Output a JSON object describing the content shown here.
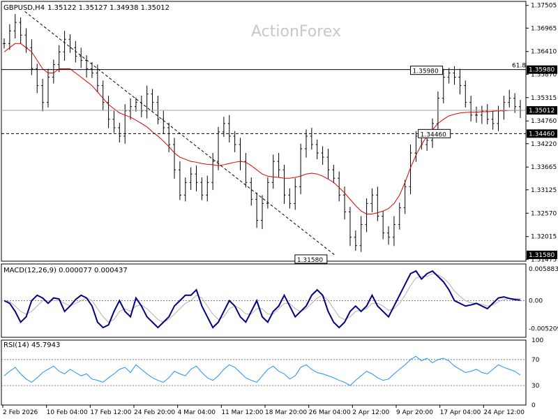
{
  "header": {
    "symbol": "GBPUSD,H4",
    "ohlc": "1.35122 1.35127 1.34938 1.35012",
    "watermark": "ActionForex"
  },
  "colors": {
    "candle": "#000000",
    "ma": "#e00000",
    "macd_line": "#000080",
    "macd_signal": "#b0b0b0",
    "rsi": "#1e90ff",
    "grid": "#808080",
    "level": "#000000"
  },
  "chart_data": [
    {
      "type": "candlestick",
      "title": "GBPUSD,H4",
      "ylim": [
        1.3143,
        1.376
      ],
      "yticks": [
        "1.37505",
        "1.36965",
        "1.36410",
        "1.35870",
        "1.35315",
        "1.34760",
        "1.34220",
        "1.33665",
        "1.33125",
        "1.32570",
        "1.32015",
        "1.31475"
      ],
      "current_price": "1.35012",
      "levels": [
        {
          "value": 1.3598,
          "label": "1.35980",
          "style": "solid",
          "right_label": "61.8"
        },
        {
          "value": 1.35012,
          "label": "1.35012",
          "style": "solid"
        },
        {
          "value": 1.3446,
          "label": "1.34460",
          "style": "dashed",
          "box_label": "1.34460"
        },
        {
          "value": 1.3158,
          "label": "1.31580",
          "style": "none",
          "box_label": "1.31580"
        }
      ],
      "trendline": {
        "from": [
          0.04,
          1.3736
        ],
        "to": [
          0.64,
          1.3158
        ]
      },
      "closes": [
        1.366,
        1.369,
        1.371,
        1.368,
        1.365,
        1.36,
        1.356,
        1.352,
        1.358,
        1.361,
        1.364,
        1.367,
        1.365,
        1.363,
        1.362,
        1.36,
        1.359,
        1.356,
        1.352,
        1.348,
        1.346,
        1.344,
        1.35,
        1.351,
        1.352,
        1.35,
        1.354,
        1.352,
        1.348,
        1.346,
        1.342,
        1.336,
        1.33,
        1.333,
        1.335,
        1.333,
        1.33,
        1.333,
        1.338,
        1.345,
        1.347,
        1.344,
        1.342,
        1.338,
        1.333,
        1.329,
        1.324,
        1.328,
        1.333,
        1.338,
        1.336,
        1.33,
        1.328,
        1.332,
        1.341,
        1.344,
        1.342,
        1.34,
        1.339,
        1.336,
        1.334,
        1.33,
        1.326,
        1.32,
        1.318,
        1.323,
        1.328,
        1.33,
        1.325,
        1.321,
        1.32,
        1.323,
        1.327,
        1.332,
        1.34,
        1.344,
        1.342,
        1.343,
        1.347,
        1.353,
        1.358,
        1.359,
        1.358,
        1.356,
        1.352,
        1.349,
        1.349,
        1.35,
        1.348,
        1.347,
        1.35,
        1.352,
        1.353,
        1.351,
        1.3501
      ],
      "ma": [
        1.364,
        1.365,
        1.366,
        1.366,
        1.365,
        1.364,
        1.362,
        1.36,
        1.359,
        1.359,
        1.36,
        1.36,
        1.36,
        1.359,
        1.358,
        1.357,
        1.356,
        1.3545,
        1.353,
        1.3515,
        1.3505,
        1.3495,
        1.349,
        1.3485,
        1.3478,
        1.347,
        1.3462,
        1.345,
        1.344,
        1.3428,
        1.3415,
        1.34,
        1.339,
        1.3385,
        1.338,
        1.3378,
        1.3375,
        1.3373,
        1.3372,
        1.337,
        1.3372,
        1.3375,
        1.3378,
        1.338,
        1.3378,
        1.337,
        1.336,
        1.335,
        1.3345,
        1.3343,
        1.3342,
        1.334,
        1.334,
        1.3342,
        1.3345,
        1.335,
        1.3352,
        1.335,
        1.3345,
        1.3338,
        1.333,
        1.3318,
        1.3305,
        1.329,
        1.3275,
        1.3262,
        1.3255,
        1.3255,
        1.3258,
        1.3262,
        1.3268,
        1.328,
        1.33,
        1.333,
        1.3365,
        1.3395,
        1.342,
        1.344,
        1.3455,
        1.347,
        1.348,
        1.3488,
        1.3492,
        1.3495,
        1.3496,
        1.3497,
        1.3497,
        1.3498,
        1.3498,
        1.3499,
        1.35,
        1.35,
        1.3501,
        1.3501,
        1.3501
      ]
    },
    {
      "type": "line",
      "title": "MACD(12,26,9) 0.000077 0.000437",
      "ylim": [
        -0.0068,
        0.0068
      ],
      "yticks": [
        "0.005883",
        "0.00",
        "-0.005209"
      ],
      "series": [
        {
          "name": "MACD",
          "values": [
            0,
            -0.0005,
            -0.002,
            -0.004,
            -0.003,
            0,
            0.001,
            0.0005,
            -0.0005,
            0.0005,
            0.0003,
            -0.002,
            -0.001,
            0.0002,
            0.001,
            0.0005,
            -0.001,
            -0.004,
            -0.005,
            -0.0045,
            -0.002,
            0,
            -0.002,
            -0.003,
            0.0005,
            -0.001,
            -0.003,
            -0.004,
            -0.005,
            -0.004,
            -0.003,
            -0.001,
            0,
            0.001,
            0.001,
            0.002,
            -0.001,
            -0.003,
            -0.005,
            -0.004,
            -0.002,
            0,
            -0.001,
            -0.003,
            -0.004,
            -0.002,
            0,
            -0.003,
            -0.004,
            -0.002,
            -0.001,
            0.001,
            -0.001,
            -0.003,
            -0.002,
            -0.001,
            0.001,
            0.002,
            0.001,
            -0.002,
            -0.004,
            -0.005,
            -0.004,
            -0.002,
            -0.001,
            -0.002,
            -0.001,
            0.001,
            -0.001,
            -0.002,
            -0.003,
            -0.001,
            0.001,
            0.003,
            0.005,
            0.0055,
            0.004,
            0.005,
            0.0055,
            0.0045,
            0.0035,
            0.002,
            0,
            -0.0005,
            -0.001,
            -0.0008,
            -0.0005,
            -0.001,
            -0.0015,
            -0.0005,
            0.0005,
            0.0007,
            0.0004,
            0.0002,
            0.0001
          ]
        },
        {
          "name": "Signal",
          "values": [
            0,
            -0.0002,
            -0.001,
            -0.002,
            -0.0025,
            -0.002,
            -0.001,
            0,
            0,
            0,
            0,
            -0.0005,
            -0.001,
            -0.0005,
            0,
            0.0005,
            0,
            -0.0015,
            -0.003,
            -0.004,
            -0.0035,
            -0.002,
            -0.0015,
            -0.002,
            -0.001,
            -0.0008,
            -0.0015,
            -0.0025,
            -0.0035,
            -0.004,
            -0.0035,
            -0.0025,
            -0.0015,
            -0.0005,
            0,
            0.001,
            0.0005,
            -0.001,
            -0.0025,
            -0.0035,
            -0.003,
            -0.0015,
            -0.001,
            -0.0015,
            -0.0025,
            -0.0025,
            -0.0015,
            -0.0015,
            -0.0025,
            -0.0025,
            -0.0015,
            -0.0005,
            -0.0005,
            -0.0015,
            -0.002,
            -0.0015,
            -0.0005,
            0.0005,
            0.001,
            0,
            -0.0015,
            -0.003,
            -0.0035,
            -0.003,
            -0.002,
            -0.0018,
            -0.0015,
            -0.0005,
            -0.0005,
            -0.001,
            -0.0018,
            -0.0015,
            -0.0005,
            0.001,
            0.0028,
            0.0042,
            0.0045,
            0.0045,
            0.005,
            0.0048,
            0.0042,
            0.0032,
            0.0018,
            0.0008,
            0,
            -0.0004,
            -0.0005,
            -0.0007,
            -0.001,
            -0.0008,
            -0.0002,
            0.0002,
            0.0004,
            0.0004,
            0.0004
          ]
        }
      ]
    },
    {
      "type": "line",
      "title": "RSI(14) 45.7943",
      "ylim": [
        0,
        100
      ],
      "yticks": [
        "100",
        "70",
        "30",
        "0"
      ],
      "series": [
        {
          "name": "RSI",
          "values": [
            45,
            52,
            58,
            48,
            40,
            35,
            42,
            50,
            55,
            60,
            52,
            48,
            55,
            50,
            45,
            48,
            40,
            38,
            35,
            42,
            48,
            55,
            58,
            50,
            62,
            55,
            48,
            42,
            38,
            35,
            42,
            52,
            48,
            45,
            55,
            60,
            50,
            42,
            38,
            45,
            55,
            62,
            58,
            50,
            42,
            38,
            35,
            45,
            55,
            60,
            52,
            48,
            40,
            45,
            58,
            62,
            55,
            50,
            48,
            45,
            42,
            38,
            35,
            30,
            38,
            45,
            52,
            48,
            42,
            38,
            40,
            48,
            55,
            62,
            70,
            75,
            68,
            72,
            65,
            70,
            72,
            68,
            60,
            55,
            50,
            52,
            55,
            50,
            48,
            55,
            62,
            58,
            55,
            52,
            46
          ]
        }
      ]
    }
  ],
  "x_axis": {
    "labels": [
      "2 Feb 2026",
      "10 Feb 04:00",
      "17 Feb 12:00",
      "24 Feb 20:00",
      "4 Mar 04:00",
      "11 Mar 12:00",
      "18 Mar 20:00",
      "26 Mar 04:00",
      "2 Apr 12:00",
      "9 Apr 20:00",
      "17 Apr 04:00",
      "24 Apr 12:00"
    ]
  }
}
